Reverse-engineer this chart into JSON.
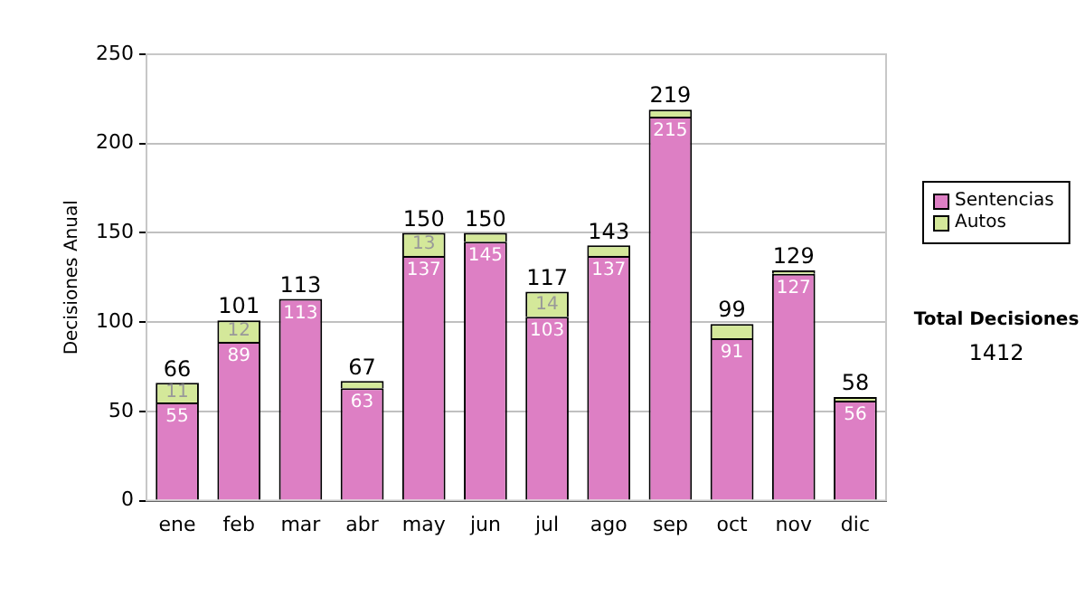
{
  "chart_data": {
    "type": "bar",
    "stacked": true,
    "ylabel": "Decisiones Anual",
    "categories": [
      "ene",
      "feb",
      "mar",
      "abr",
      "may",
      "jun",
      "jul",
      "ago",
      "sep",
      "oct",
      "nov",
      "dic"
    ],
    "series": [
      {
        "name": "Sentencias",
        "color": "#dd7fc4",
        "values": [
          55,
          89,
          113,
          63,
          137,
          145,
          103,
          137,
          215,
          91,
          127,
          56
        ],
        "value_labels": [
          "55",
          "89",
          "113",
          "63",
          "137",
          "145",
          "103",
          "137",
          "215",
          "91",
          "127",
          "56"
        ]
      },
      {
        "name": "Autos",
        "color": "#d4e89a",
        "values": [
          11,
          12,
          0,
          4,
          13,
          5,
          14,
          6,
          4,
          8,
          2,
          2
        ],
        "value_labels": [
          "11",
          "12",
          null,
          null,
          "13",
          null,
          "14",
          null,
          null,
          null,
          null,
          null
        ]
      }
    ],
    "totals": [
      "66",
      "101",
      "113",
      "67",
      "150",
      "150",
      "117",
      "143",
      "219",
      "99",
      "129",
      "58"
    ],
    "ylim": [
      0,
      250
    ],
    "yticks": [
      0,
      50,
      100,
      150,
      200,
      250
    ],
    "grid": "y",
    "legend": "right",
    "annotations": [
      "Total Decisiones",
      "1412"
    ]
  }
}
